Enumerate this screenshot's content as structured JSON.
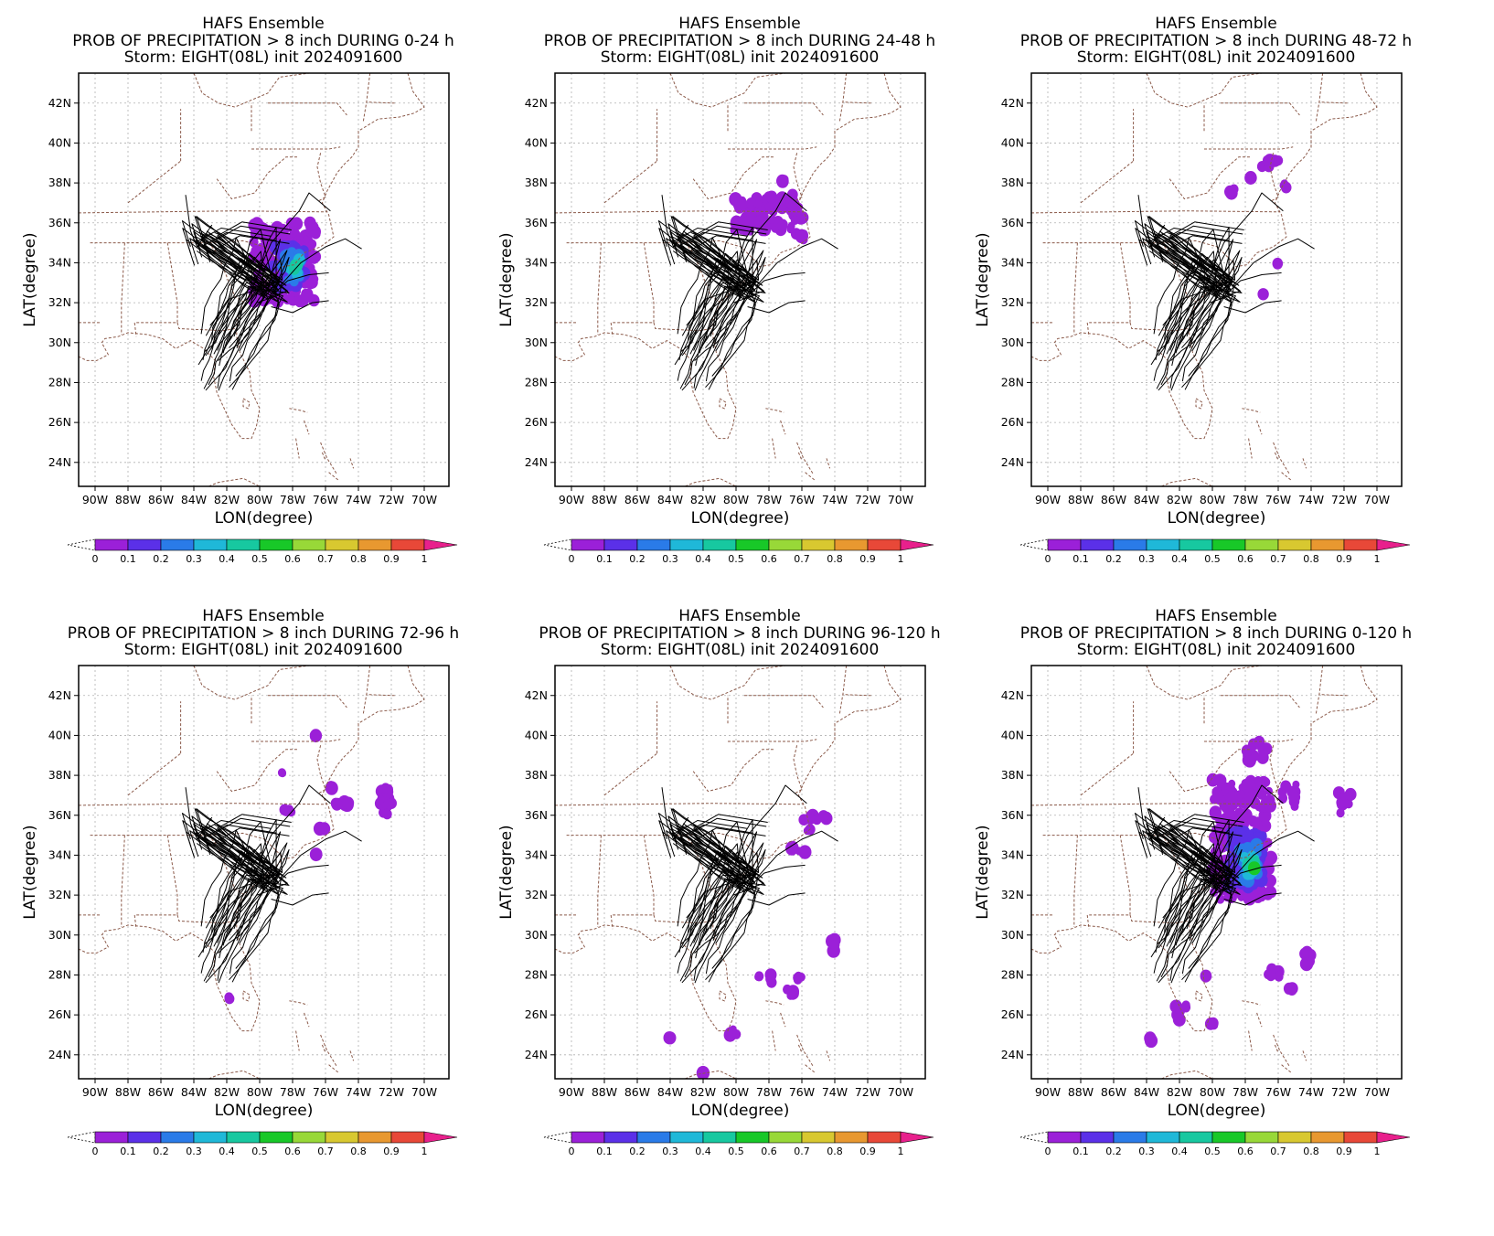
{
  "figure": {
    "panels": [
      {
        "title1": "HAFS Ensemble",
        "title2": "PROB OF PRECIPITATION > 8 inch DURING  0-24 h",
        "title3": "Storm: EIGHT(08L) init 2024091600"
      },
      {
        "title1": "HAFS Ensemble",
        "title2": "PROB OF PRECIPITATION > 8 inch DURING 24-48 h",
        "title3": "Storm: EIGHT(08L) init 2024091600"
      },
      {
        "title1": "HAFS Ensemble",
        "title2": "PROB OF PRECIPITATION > 8 inch DURING 48-72 h",
        "title3": "Storm: EIGHT(08L) init 2024091600"
      },
      {
        "title1": "HAFS Ensemble",
        "title2": "PROB OF PRECIPITATION > 8 inch DURING 72-96 h",
        "title3": "Storm: EIGHT(08L) init 2024091600"
      },
      {
        "title1": "HAFS Ensemble",
        "title2": "PROB OF PRECIPITATION > 8 inch DURING 96-120 h",
        "title3": "Storm: EIGHT(08L) init 2024091600"
      },
      {
        "title1": "HAFS Ensemble",
        "title2": "PROB OF PRECIPITATION > 8 inch DURING 0-120 h",
        "title3": "Storm: EIGHT(08L) init 2024091600"
      }
    ],
    "xlabel": "LON(degree)",
    "ylabel": "LAT(degree)",
    "x_ticks": [
      "90W",
      "88W",
      "86W",
      "84W",
      "82W",
      "80W",
      "78W",
      "76W",
      "74W",
      "72W",
      "70W"
    ],
    "y_ticks": [
      "24N",
      "26N",
      "28N",
      "30N",
      "32N",
      "34N",
      "36N",
      "38N",
      "40N",
      "42N"
    ],
    "colorbar_labels": [
      "0",
      "0.1",
      "0.2",
      "0.3",
      "0.4",
      "0.5",
      "0.6",
      "0.7",
      "0.8",
      "0.9",
      "1"
    ],
    "colorbar_colors": [
      "#9b20d8",
      "#5b30e8",
      "#2a7be8",
      "#1fb8d8",
      "#17c8a0",
      "#18c828",
      "#98d838",
      "#d8c830",
      "#e89830",
      "#e84838"
    ],
    "overflow_color": "#e8208c",
    "border_color": "#8b5a4a",
    "track_color": "#000000"
  },
  "chart_data": {
    "type": "heatmap",
    "x_range_lon": [
      -91,
      -68.5
    ],
    "y_range_lat": [
      22.8,
      43.5
    ],
    "grid": true,
    "variable": "probability of precipitation > 8 inch",
    "colorbar_levels": [
      0,
      0.1,
      0.2,
      0.3,
      0.4,
      0.5,
      0.6,
      0.7,
      0.8,
      0.9,
      1
    ],
    "panels": [
      {
        "period": "0-24 h",
        "max_probability": 0.4,
        "region_center": [
          -78.0,
          34.0
        ]
      },
      {
        "period": "24-48 h",
        "max_probability": 0.1,
        "region_center": [
          -78.5,
          36.2
        ]
      },
      {
        "period": "48-72 h",
        "max_probability": 0.1,
        "region_center": [
          -77.0,
          38.5
        ]
      },
      {
        "period": "72-96 h",
        "max_probability": 0.1,
        "region_center": [
          -74.5,
          36.5
        ]
      },
      {
        "period": "96-120 h",
        "max_probability": 0.1,
        "region_center": [
          -76.0,
          34.5
        ]
      },
      {
        "period": "0-120 h",
        "max_probability": 0.5,
        "region_center": [
          -78.0,
          34.0
        ]
      }
    ]
  }
}
